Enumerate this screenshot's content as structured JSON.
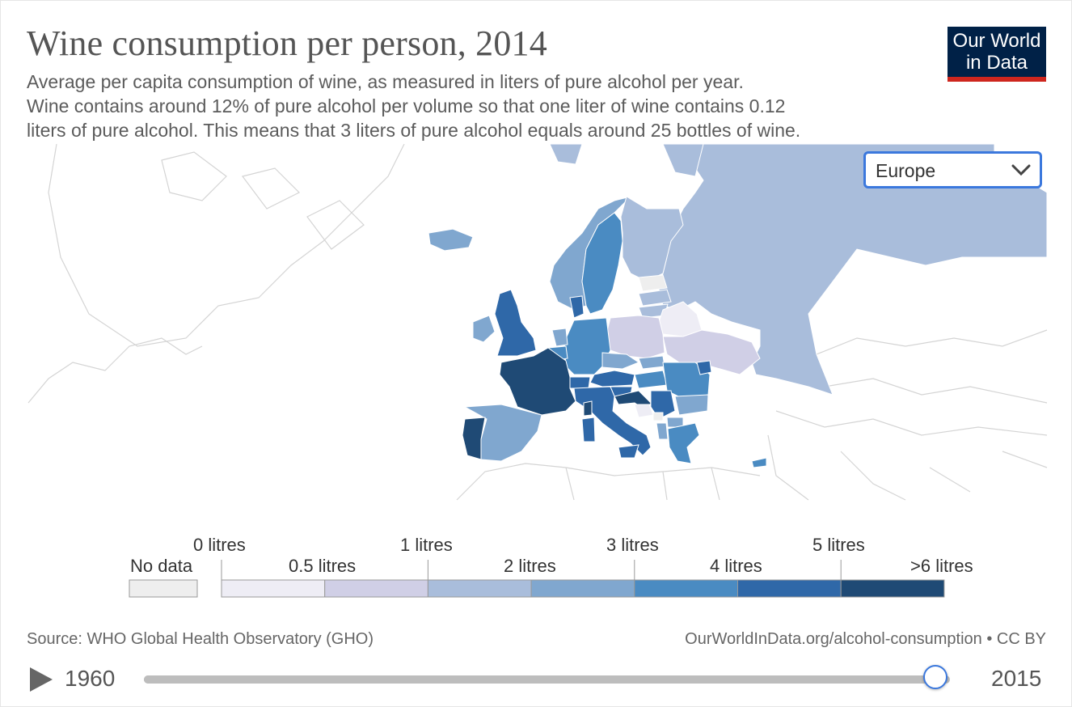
{
  "header": {
    "title": "Wine consumption per person, 2014",
    "subtitle_lines": [
      "Average per capita consumption of wine, as measured in liters of pure alcohol per year.",
      "Wine contains around 12% of pure alcohol per volume so that one liter of wine contains 0.12",
      "liters of pure alcohol. This means that 3 liters of pure alcohol equals around 25 bottles of wine."
    ]
  },
  "logo": {
    "line1": "Our World",
    "line2": "in Data",
    "bg": "#002147",
    "accent": "#ce261e"
  },
  "region_select": {
    "value": "Europe",
    "icon": "chevron-down-icon"
  },
  "map": {
    "projection": "Europe",
    "colors": {
      "no_data": "#eeeeee",
      "bin_0": "#eeedf5",
      "bin_1": "#d0cfe6",
      "bin_2": "#a9bddb",
      "bin_3": "#80a7cf",
      "bin_4": "#4a8bc2",
      "bin_5": "#2f68a8",
      "bin_6": "#1f4a75",
      "outline": "#d4d4d4"
    }
  },
  "legend": {
    "no_data_label": "No data",
    "upper_labels": [
      "0 litres",
      "1 litres",
      "3 litres",
      "5 litres"
    ],
    "lower_labels": [
      "0.5 litres",
      "2 litres",
      "4 litres",
      ">6 litres"
    ],
    "bins": [
      "#eeedf5",
      "#d0cfe6",
      "#a9bddb",
      "#80a7cf",
      "#4a8bc2",
      "#2f68a8",
      "#1f4a75"
    ]
  },
  "footer": {
    "source": "Source: WHO Global Health Observatory (GHO)",
    "license": "OurWorldInData.org/alcohol-consumption • CC BY"
  },
  "timeline": {
    "start_year": "1960",
    "end_year": "2015",
    "selected_year": 2014,
    "min_year": 1960,
    "max_year": 2015
  }
}
